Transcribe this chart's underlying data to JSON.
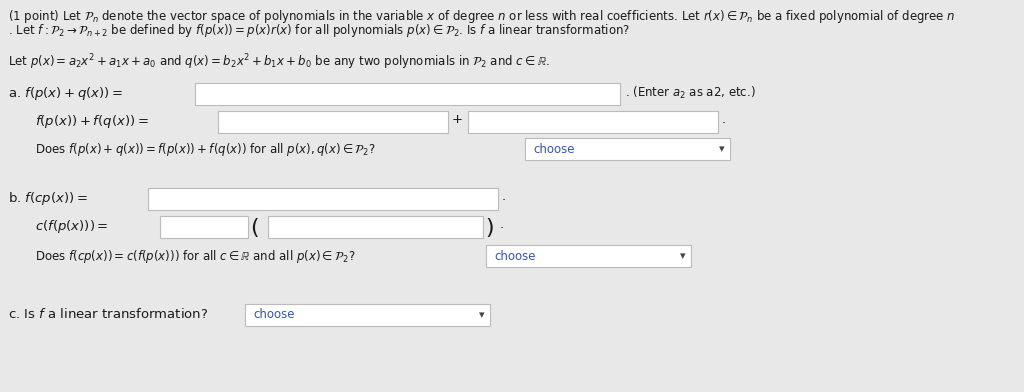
{
  "bg_color": "#e8e8e8",
  "white": "#ffffff",
  "border": "#bbbbbb",
  "text_color": "#1a1a1a",
  "choose_color": "#3355aa",
  "title1": "(1 point) Let $\\mathcal{P}_n$ denote the vector space of polynomials in the variable $x$ of degree $n$ or less with real coefficients. Let $r(x) \\in \\mathcal{P}_n$ be a fixed polynomial of degree $n$",
  "title2": ". Let $f : \\mathcal{P}_2 \\rightarrow \\mathcal{P}_{n+2}$ be defined by $f(p(x)) = p(x)r(x)$ for all polynomials $p(x) \\in \\mathcal{P}_2$. Is $f$ a linear transformation?",
  "let_line": "Let $p(x) = a_2x^2 + a_1x + a_0$ and $q(x) = b_2x^2 + b_1x + b_0$ be any two polynomials in $\\mathcal{P}_2$ and $c \\in \\mathbb{R}$.",
  "hint": ". (Enter $a_2$ as a2, etc.)"
}
